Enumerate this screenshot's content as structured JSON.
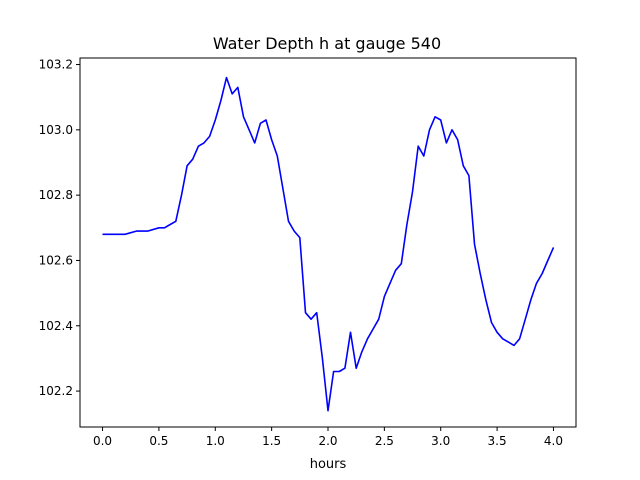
{
  "chart_data": {
    "type": "line",
    "title": "Water Depth h at gauge 540",
    "xlabel": "hours",
    "ylabel": "",
    "xlim": [
      -0.2,
      4.2
    ],
    "ylim": [
      102.09,
      103.22
    ],
    "xticks": [
      0.0,
      0.5,
      1.0,
      1.5,
      2.0,
      2.5,
      3.0,
      3.5,
      4.0
    ],
    "xtick_labels": [
      "0.0",
      "0.5",
      "1.0",
      "1.5",
      "2.0",
      "2.5",
      "3.0",
      "3.5",
      "4.0"
    ],
    "yticks": [
      102.2,
      102.4,
      102.6,
      102.8,
      103.0,
      103.2
    ],
    "ytick_labels": [
      "102.2",
      "102.4",
      "102.6",
      "102.8",
      "103.0",
      "103.2"
    ],
    "grid": false,
    "legend": "none",
    "series": [
      {
        "color": "#0000ff",
        "x": [
          0.0,
          0.2,
          0.3,
          0.4,
          0.5,
          0.55,
          0.6,
          0.65,
          0.7,
          0.75,
          0.8,
          0.85,
          0.9,
          0.95,
          1.0,
          1.05,
          1.1,
          1.15,
          1.2,
          1.25,
          1.3,
          1.35,
          1.4,
          1.45,
          1.5,
          1.55,
          1.6,
          1.65,
          1.7,
          1.75,
          1.8,
          1.85,
          1.9,
          1.95,
          2.0,
          2.05,
          2.1,
          2.15,
          2.2,
          2.25,
          2.3,
          2.35,
          2.4,
          2.45,
          2.5,
          2.55,
          2.6,
          2.65,
          2.7,
          2.75,
          2.8,
          2.85,
          2.9,
          2.95,
          3.0,
          3.05,
          3.1,
          3.15,
          3.2,
          3.25,
          3.3,
          3.35,
          3.4,
          3.45,
          3.5,
          3.55,
          3.6,
          3.65,
          3.7,
          3.75,
          3.8,
          3.85,
          3.9,
          3.95,
          4.0
        ],
        "y": [
          102.68,
          102.68,
          102.69,
          102.69,
          102.7,
          102.7,
          102.71,
          102.72,
          102.8,
          102.89,
          102.91,
          102.95,
          102.96,
          102.98,
          103.03,
          103.09,
          103.16,
          103.11,
          103.13,
          103.04,
          103.0,
          102.96,
          103.02,
          103.03,
          102.97,
          102.92,
          102.82,
          102.72,
          102.69,
          102.67,
          102.44,
          102.42,
          102.44,
          102.3,
          102.14,
          102.26,
          102.26,
          102.27,
          102.38,
          102.27,
          102.32,
          102.36,
          102.39,
          102.42,
          102.49,
          102.53,
          102.57,
          102.59,
          102.71,
          102.81,
          102.95,
          102.92,
          103.0,
          103.04,
          103.03,
          102.96,
          103.0,
          102.97,
          102.89,
          102.86,
          102.65,
          102.56,
          102.48,
          102.41,
          102.38,
          102.36,
          102.35,
          102.34,
          102.36,
          102.42,
          102.48,
          102.53,
          102.56,
          102.6,
          102.64
        ]
      }
    ]
  }
}
